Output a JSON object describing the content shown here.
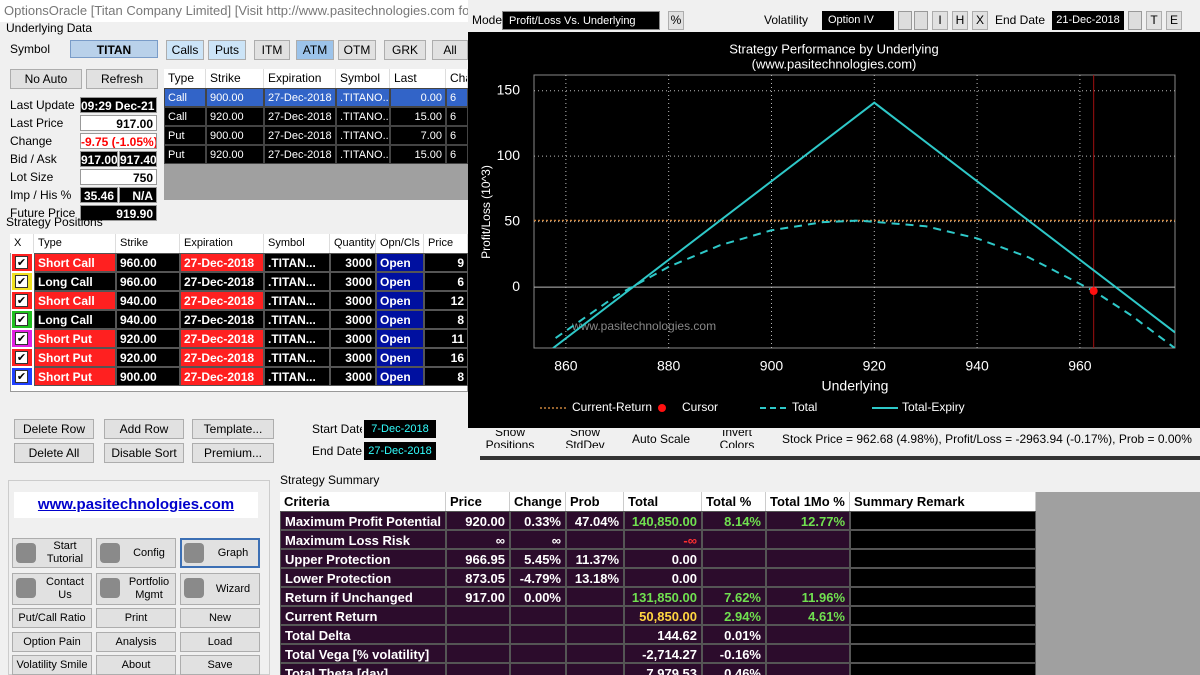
{
  "window_title": "OptionsOracle [Titan Company Limited]    [Visit  http://www.pasitechnologies.com  for Op",
  "underlying": {
    "group": "Underlying Data",
    "symbol_label": "Symbol",
    "symbol": "TITAN",
    "buttons": [
      "Calls",
      "Puts",
      "ITM",
      "ATM",
      "OTM",
      "GRK",
      "All"
    ],
    "no_auto": "No Auto",
    "refresh": "Refresh",
    "fields": [
      {
        "label": "Last Update",
        "values": [
          "09:29 Dec-21"
        ]
      },
      {
        "label": "Last Price",
        "values": [
          "917.00"
        ]
      },
      {
        "label": "Change",
        "values": [
          "-9.75 (-1.05%)"
        ]
      },
      {
        "label": "Bid / Ask",
        "values": [
          "917.00",
          "917.40"
        ]
      },
      {
        "label": "Lot Size",
        "values": [
          "750"
        ]
      },
      {
        "label": "Imp / His %",
        "values": [
          "35.46",
          "N/A"
        ]
      },
      {
        "label": "Future Price",
        "values": [
          "919.90"
        ]
      }
    ]
  },
  "options_table": {
    "columns": [
      "Type",
      "Strike",
      "Expiration",
      "Symbol",
      "Last",
      "Cha"
    ],
    "rows": [
      [
        "Call",
        "900.00",
        "27-Dec-2018",
        ".TITANO...",
        "0.00",
        "6"
      ],
      [
        "Call",
        "920.00",
        "27-Dec-2018",
        ".TITANO...",
        "15.00",
        "6"
      ],
      [
        "Put",
        "900.00",
        "27-Dec-2018",
        ".TITANO...",
        "7.00",
        "6"
      ],
      [
        "Put",
        "920.00",
        "27-Dec-2018",
        ".TITANO...",
        "15.00",
        "6"
      ]
    ]
  },
  "positions": {
    "title": "Strategy Positions",
    "columns": [
      "X",
      "Type",
      "Strike",
      "Expiration",
      "Symbol",
      "Quantity",
      "Opn/Cls",
      "Price"
    ],
    "rows": [
      [
        "Short Call",
        "960.00",
        "27-Dec-2018",
        ".TITAN...",
        "3000",
        "Open",
        "9"
      ],
      [
        "Long Call",
        "960.00",
        "27-Dec-2018",
        ".TITAN...",
        "3000",
        "Open",
        "6"
      ],
      [
        "Short Call",
        "940.00",
        "27-Dec-2018",
        ".TITAN...",
        "3000",
        "Open",
        "12"
      ],
      [
        "Long Call",
        "940.00",
        "27-Dec-2018",
        ".TITAN...",
        "3000",
        "Open",
        "8"
      ],
      [
        "Short Put",
        "920.00",
        "27-Dec-2018",
        ".TITAN...",
        "3000",
        "Open",
        "11"
      ],
      [
        "Short Put",
        "920.00",
        "27-Dec-2018",
        ".TITAN...",
        "3000",
        "Open",
        "16"
      ],
      [
        "Short Put",
        "900.00",
        "27-Dec-2018",
        ".TITAN...",
        "3000",
        "Open",
        "8"
      ]
    ],
    "check_colors": [
      "#ff2020",
      "#f0e020",
      "#ff2020",
      "#20c020",
      "#e020e0",
      "#ff2020",
      "#2040ff"
    ]
  },
  "position_buttons": [
    "Delete Row",
    "Add Row",
    "Template...",
    "Delete All",
    "Disable Sort",
    "Premium..."
  ],
  "start_date_label": "Start Date",
  "start_date": "7-Dec-2018",
  "end_date_label": "End Date",
  "end_date": "27-Dec-2018",
  "link": "www.pasitechnologies.com",
  "nav_buttons": [
    "Start Tutorial",
    "Config",
    "Graph",
    "Contact Us",
    "Portfolio Mgmt",
    "Wizard",
    "Put/Call Ratio",
    "Print",
    "New",
    "Option Pain",
    "Analysis",
    "Load",
    "Volatility Smile",
    "About",
    "Save"
  ],
  "toolbar": {
    "mode_label": "Mode",
    "mode": "Profit/Loss Vs. Underlying",
    "percent": "%",
    "volatility_label": "Volatility",
    "volatility": "Option IV",
    "buttons": [
      "I",
      "H",
      "X"
    ],
    "end_date_label": "End Date",
    "end_date": "21-Dec-2018",
    "buttons2": [
      "T",
      "E"
    ]
  },
  "chart_data": {
    "type": "line",
    "title": "Strategy Performance by Underlying",
    "subtitle": "(www.pasitechnologies.com)",
    "ylabel": "Profit/Loss (10^3)",
    "xlabel": "Underlying",
    "watermark": "www.pasitechnologies.com",
    "xlim": [
      853.8,
      978.5
    ],
    "ylim": [
      -46.5,
      162
    ],
    "xticks": [
      860,
      880,
      900,
      920,
      940,
      960
    ],
    "yticks": [
      0,
      50,
      100,
      150
    ],
    "grid": true,
    "current_return": {
      "name": "Current-Return",
      "value": 50.85,
      "color": "#c8823c"
    },
    "cursor": {
      "name": "Cursor",
      "x": 962.68,
      "y": -2.96,
      "color": "#ff1010"
    },
    "series": [
      {
        "name": "Total",
        "color": "#2ec8c8",
        "dashed": true,
        "x": [
          858,
          870,
          880,
          890,
          900,
          910,
          917,
          930,
          940,
          950,
          962.68,
          970,
          978.5
        ],
        "values": [
          -38.9,
          -6.1,
          15.5,
          32.0,
          43.4,
          49.6,
          50.85,
          46.5,
          37.2,
          22.8,
          -2.96,
          -21.6,
          -46.7
        ]
      },
      {
        "name": "Total-Expiry",
        "color": "#2ec8c8",
        "dashed": false,
        "x": [
          857.5,
          920,
          978.5
        ],
        "values": [
          -46.6,
          140.85,
          -34.6
        ]
      }
    ]
  },
  "status_bar": {
    "buttons": [
      "Show Positions",
      "Show StdDev",
      "Auto Scale",
      "Invert Colors"
    ],
    "info": "Stock Price = 962.68 (4.98%), Profit/Loss = -2963.94 (-0.17%), Prob = 0.00%"
  },
  "summary": {
    "title": "Strategy Summary",
    "columns": [
      "Criteria",
      "Price",
      "Change",
      "Prob",
      "Total",
      "Total %",
      "Total 1Mo %",
      "Summary Remark"
    ],
    "rows": [
      [
        "Maximum Profit Potential",
        "920.00",
        "0.33%",
        "47.04%",
        "140,850.00",
        "8.14%",
        "12.77%",
        null
      ],
      [
        "Maximum Loss Risk",
        "∞",
        "∞",
        null,
        "-∞",
        null,
        null,
        null
      ],
      [
        "Upper Protection",
        "966.95",
        "5.45%",
        "11.37%",
        "0.00",
        null,
        null,
        null
      ],
      [
        "Lower Protection",
        "873.05",
        "-4.79%",
        "13.18%",
        "0.00",
        null,
        null,
        null
      ],
      [
        "Return if Unchanged",
        "917.00",
        "0.00%",
        null,
        "131,850.00",
        "7.62%",
        "11.96%",
        null
      ],
      [
        "Current Return",
        null,
        null,
        null,
        "50,850.00",
        "2.94%",
        "4.61%",
        null
      ],
      [
        "Total Delta",
        null,
        null,
        null,
        "144.62",
        "0.01%",
        null,
        null
      ],
      [
        "Total Vega [% volatility]",
        null,
        null,
        null,
        "-2,714.27",
        "-0.16%",
        null,
        null
      ],
      [
        "Total Theta [day]",
        null,
        null,
        null,
        "7,979.53",
        "0.46%",
        null,
        null
      ]
    ]
  }
}
